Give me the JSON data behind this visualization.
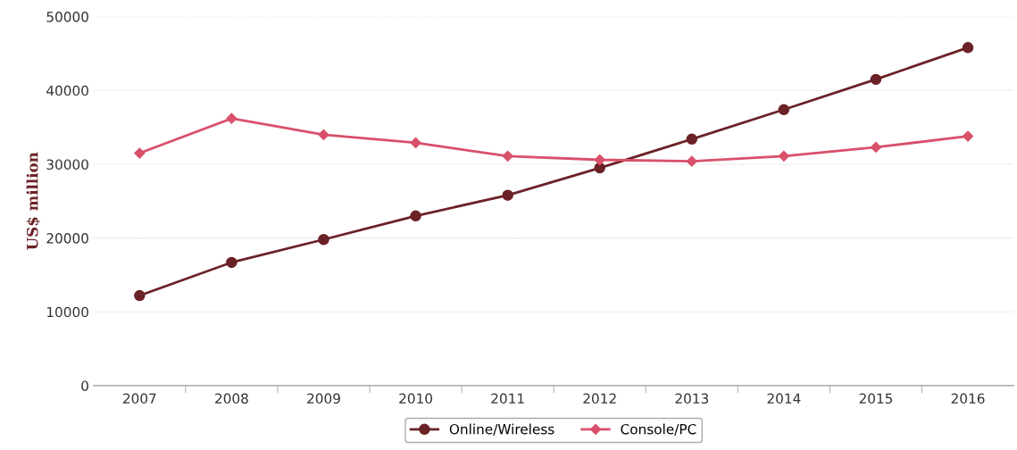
{
  "chart_data": {
    "type": "line",
    "ylabel": "US$ million",
    "categories": [
      "2007",
      "2008",
      "2009",
      "2010",
      "2011",
      "2012",
      "2013",
      "2014",
      "2015",
      "2016"
    ],
    "series": [
      {
        "name": "Online/Wireless",
        "color": "#6b2226",
        "marker": "circle",
        "values": [
          12200,
          16700,
          19800,
          23000,
          25800,
          29500,
          33400,
          37400,
          41500,
          45800
        ]
      },
      {
        "name": "Console/PC",
        "color": "#d9506a",
        "marker": "diamond",
        "values": [
          31500,
          36200,
          34000,
          32900,
          31100,
          30600,
          30400,
          31100,
          32300,
          33800
        ]
      }
    ],
    "ylim": [
      0,
      50000
    ],
    "yticks": [
      0,
      10000,
      20000,
      30000,
      40000,
      50000
    ],
    "grid": "y",
    "legend": "bottom",
    "line_style": "solid"
  }
}
